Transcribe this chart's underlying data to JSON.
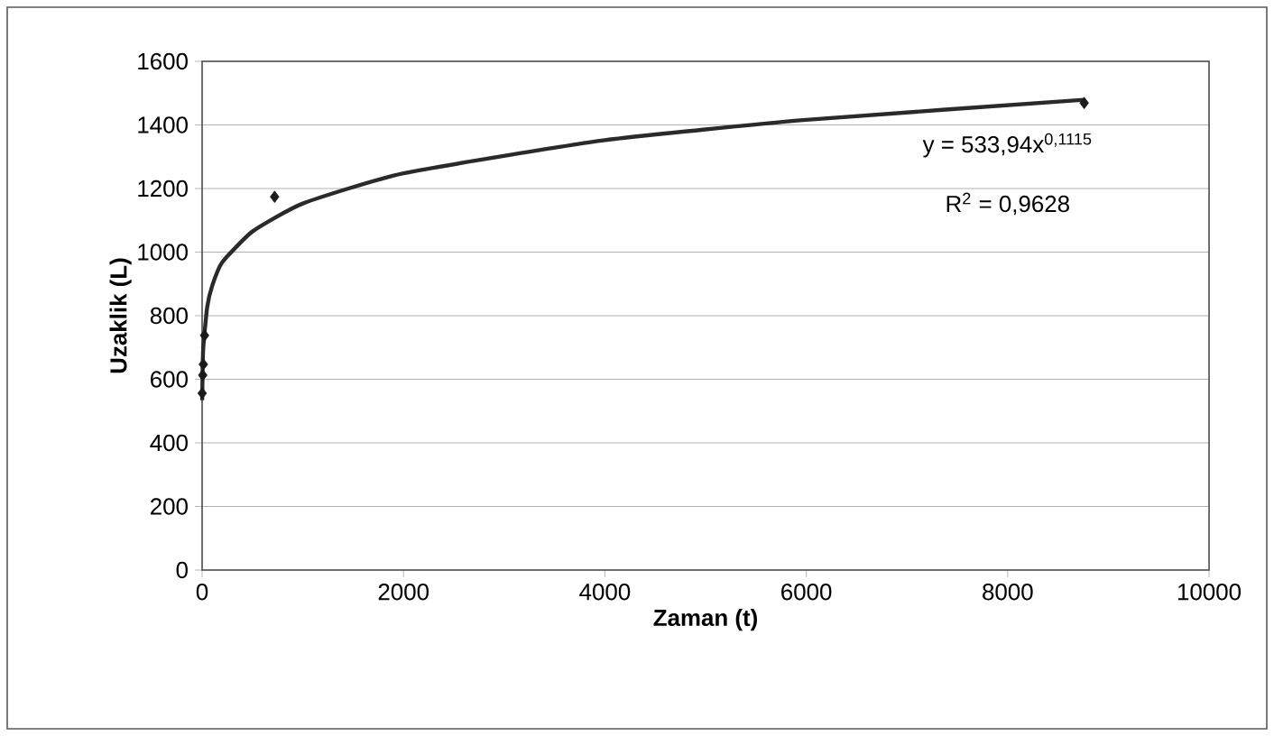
{
  "chart_data": {
    "type": "scatter",
    "xlabel": "Zaman (t)",
    "ylabel": "Uzaklik (L)",
    "xlim": [
      0,
      10000
    ],
    "xticks": [
      0,
      2000,
      4000,
      6000,
      8000,
      10000
    ],
    "ylim": [
      0,
      1600
    ],
    "yticks": [
      0,
      200,
      400,
      600,
      800,
      1000,
      1200,
      1400,
      1600
    ],
    "grid": "y",
    "marker": "diamond",
    "series": [
      {
        "color": "#1a1a1a",
        "x": [
          1,
          6,
          12,
          24,
          720,
          8760
        ],
        "values": [
          556,
          613,
          647,
          738,
          1174,
          1469
        ]
      },
      {
        "type": "line",
        "color": "#2a2a2a",
        "line_style": "solid",
        "marker": "none",
        "x": [
          1,
          10,
          50,
          100,
          200,
          500,
          1000,
          2000,
          4000,
          6000,
          8760
        ],
        "values": [
          534,
          691,
          826,
          894,
          968,
          1065,
          1153,
          1248,
          1352,
          1416,
          1479
        ]
      }
    ],
    "annotations": [
      "y = 533,94x$^{0,1115}$",
      "R$^{2}$ = 0,9628"
    ]
  }
}
